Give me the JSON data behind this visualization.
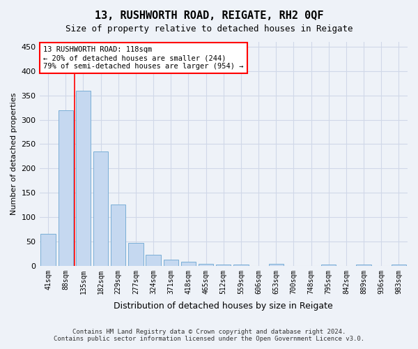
{
  "title": "13, RUSHWORTH ROAD, REIGATE, RH2 0QF",
  "subtitle": "Size of property relative to detached houses in Reigate",
  "xlabel": "Distribution of detached houses by size in Reigate",
  "ylabel": "Number of detached properties",
  "footer_line1": "Contains HM Land Registry data © Crown copyright and database right 2024.",
  "footer_line2": "Contains public sector information licensed under the Open Government Licence v3.0.",
  "categories": [
    "41sqm",
    "88sqm",
    "135sqm",
    "182sqm",
    "229sqm",
    "277sqm",
    "324sqm",
    "371sqm",
    "418sqm",
    "465sqm",
    "512sqm",
    "559sqm",
    "606sqm",
    "653sqm",
    "700sqm",
    "748sqm",
    "795sqm",
    "842sqm",
    "889sqm",
    "936sqm",
    "983sqm"
  ],
  "values": [
    65,
    320,
    360,
    235,
    126,
    47,
    23,
    13,
    8,
    4,
    2,
    2,
    0,
    4,
    0,
    0,
    3,
    0,
    3,
    0,
    3
  ],
  "bar_color": "#c5d8f0",
  "bar_edge_color": "#7aaed6",
  "grid_color": "#d0d8e8",
  "background_color": "#eef2f8",
  "annotation_text": "13 RUSHWORTH ROAD: 118sqm\n← 20% of detached houses are smaller (244)\n79% of semi-detached houses are larger (954) →",
  "annotation_box_color": "white",
  "annotation_box_edge_color": "red",
  "vline_x_index": 1.5,
  "vline_color": "red",
  "ylim": [
    0,
    460
  ],
  "yticks": [
    0,
    50,
    100,
    150,
    200,
    250,
    300,
    350,
    400,
    450
  ]
}
